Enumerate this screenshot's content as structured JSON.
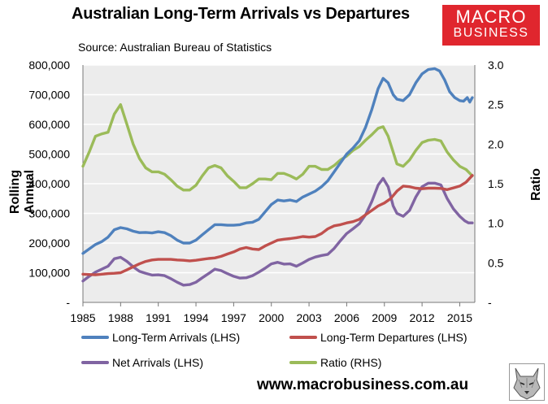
{
  "header": {
    "title": "Australian Long-Term Arrivals vs Departures",
    "subtitle": "Source: Australian Bureau of Statistics"
  },
  "logo": {
    "line1": "MACRO",
    "line2": "BUSINESS"
  },
  "footer": {
    "website": "www.macrobusiness.com.au"
  },
  "colors": {
    "arrivals": "#4f81bd",
    "departures": "#c0504d",
    "net": "#8064a2",
    "ratio": "#9bbb59",
    "logo_bg": "#e0262e"
  },
  "chart_data": {
    "type": "line",
    "ylabel_left": "Rolling Annual",
    "ylabel_right": "Ratio",
    "xlim": [
      1985,
      2016.2
    ],
    "ylim_left": [
      0,
      800000
    ],
    "ylim_right": [
      0,
      3.0
    ],
    "x_ticks": [
      "1985",
      "1988",
      "1991",
      "1994",
      "1997",
      "2000",
      "2003",
      "2006",
      "2009",
      "2012",
      "2015"
    ],
    "y_ticks_left": [
      "-",
      "100,000",
      "200,000",
      "300,000",
      "400,000",
      "500,000",
      "600,000",
      "700,000",
      "800,000"
    ],
    "y_ticks_right": [
      "-",
      "0.5",
      "1.0",
      "1.5",
      "2.0",
      "2.5",
      "3.0"
    ],
    "grid": true,
    "legend_position": "bottom",
    "series": [
      {
        "name": "Long-Term Arrivals (LHS)",
        "axis": "left",
        "points": [
          [
            1985,
            165000
          ],
          [
            1985.5,
            180000
          ],
          [
            1986,
            195000
          ],
          [
            1986.5,
            205000
          ],
          [
            1987,
            220000
          ],
          [
            1987.5,
            245000
          ],
          [
            1988,
            252000
          ],
          [
            1988.5,
            248000
          ],
          [
            1989,
            240000
          ],
          [
            1989.5,
            235000
          ],
          [
            1990,
            236000
          ],
          [
            1990.5,
            234000
          ],
          [
            1991,
            238000
          ],
          [
            1991.5,
            235000
          ],
          [
            1992,
            225000
          ],
          [
            1992.5,
            210000
          ],
          [
            1993,
            200000
          ],
          [
            1993.5,
            200000
          ],
          [
            1994,
            210000
          ],
          [
            1994.5,
            228000
          ],
          [
            1995,
            245000
          ],
          [
            1995.5,
            262000
          ],
          [
            1996,
            262000
          ],
          [
            1996.5,
            260000
          ],
          [
            1997,
            260000
          ],
          [
            1997.5,
            262000
          ],
          [
            1998,
            268000
          ],
          [
            1998.5,
            270000
          ],
          [
            1999,
            280000
          ],
          [
            1999.5,
            305000
          ],
          [
            2000,
            330000
          ],
          [
            2000.5,
            345000
          ],
          [
            2001,
            342000
          ],
          [
            2001.5,
            345000
          ],
          [
            2002,
            340000
          ],
          [
            2002.5,
            355000
          ],
          [
            2003,
            365000
          ],
          [
            2003.5,
            375000
          ],
          [
            2004,
            390000
          ],
          [
            2004.5,
            410000
          ],
          [
            2005,
            440000
          ],
          [
            2005.5,
            470000
          ],
          [
            2006,
            500000
          ],
          [
            2006.5,
            520000
          ],
          [
            2007,
            545000
          ],
          [
            2007.5,
            590000
          ],
          [
            2008,
            650000
          ],
          [
            2008.5,
            720000
          ],
          [
            2008.9,
            755000
          ],
          [
            2009.3,
            740000
          ],
          [
            2009.7,
            700000
          ],
          [
            2010,
            685000
          ],
          [
            2010.5,
            680000
          ],
          [
            2011,
            700000
          ],
          [
            2011.5,
            740000
          ],
          [
            2012,
            770000
          ],
          [
            2012.5,
            785000
          ],
          [
            2013,
            788000
          ],
          [
            2013.4,
            780000
          ],
          [
            2013.8,
            750000
          ],
          [
            2014.2,
            710000
          ],
          [
            2014.6,
            690000
          ],
          [
            2015,
            680000
          ],
          [
            2015.3,
            678000
          ],
          [
            2015.6,
            690000
          ],
          [
            2015.8,
            675000
          ],
          [
            2016,
            690000
          ]
        ]
      },
      {
        "name": "Long-Term Departures (LHS)",
        "axis": "left",
        "points": [
          [
            1985,
            95000
          ],
          [
            1985.5,
            94000
          ],
          [
            1986,
            93000
          ],
          [
            1986.5,
            95000
          ],
          [
            1987,
            97000
          ],
          [
            1987.5,
            98000
          ],
          [
            1988,
            100000
          ],
          [
            1988.5,
            110000
          ],
          [
            1989,
            120000
          ],
          [
            1989.5,
            130000
          ],
          [
            1990,
            138000
          ],
          [
            1990.5,
            143000
          ],
          [
            1991,
            145000
          ],
          [
            1991.5,
            145000
          ],
          [
            1992,
            145000
          ],
          [
            1992.5,
            143000
          ],
          [
            1993,
            142000
          ],
          [
            1993.5,
            140000
          ],
          [
            1994,
            142000
          ],
          [
            1994.5,
            145000
          ],
          [
            1995,
            148000
          ],
          [
            1995.5,
            150000
          ],
          [
            1996,
            155000
          ],
          [
            1996.5,
            163000
          ],
          [
            1997,
            170000
          ],
          [
            1997.5,
            180000
          ],
          [
            1998,
            185000
          ],
          [
            1998.5,
            180000
          ],
          [
            1999,
            178000
          ],
          [
            1999.5,
            190000
          ],
          [
            2000,
            200000
          ],
          [
            2000.5,
            210000
          ],
          [
            2001,
            213000
          ],
          [
            2001.5,
            215000
          ],
          [
            2002,
            218000
          ],
          [
            2002.5,
            222000
          ],
          [
            2003,
            220000
          ],
          [
            2003.5,
            222000
          ],
          [
            2004,
            232000
          ],
          [
            2004.5,
            248000
          ],
          [
            2005,
            258000
          ],
          [
            2005.5,
            262000
          ],
          [
            2006,
            268000
          ],
          [
            2006.5,
            272000
          ],
          [
            2007,
            280000
          ],
          [
            2007.5,
            295000
          ],
          [
            2008,
            310000
          ],
          [
            2008.5,
            325000
          ],
          [
            2009,
            335000
          ],
          [
            2009.5,
            350000
          ],
          [
            2010,
            375000
          ],
          [
            2010.5,
            392000
          ],
          [
            2011,
            390000
          ],
          [
            2011.5,
            385000
          ],
          [
            2012,
            383000
          ],
          [
            2012.5,
            385000
          ],
          [
            2013,
            385000
          ],
          [
            2013.5,
            384000
          ],
          [
            2014,
            380000
          ],
          [
            2014.5,
            386000
          ],
          [
            2015,
            392000
          ],
          [
            2015.5,
            405000
          ],
          [
            2016,
            428000
          ]
        ]
      },
      {
        "name": "Net Arrivals (LHS)",
        "axis": "left",
        "points": [
          [
            1985,
            72000
          ],
          [
            1985.5,
            88000
          ],
          [
            1986,
            102000
          ],
          [
            1986.5,
            112000
          ],
          [
            1987,
            122000
          ],
          [
            1987.5,
            147000
          ],
          [
            1988,
            152000
          ],
          [
            1988.5,
            138000
          ],
          [
            1989,
            120000
          ],
          [
            1989.5,
            105000
          ],
          [
            1990,
            98000
          ],
          [
            1990.5,
            92000
          ],
          [
            1991,
            93000
          ],
          [
            1991.5,
            90000
          ],
          [
            1992,
            80000
          ],
          [
            1992.5,
            68000
          ],
          [
            1993,
            58000
          ],
          [
            1993.5,
            60000
          ],
          [
            1994,
            68000
          ],
          [
            1994.5,
            83000
          ],
          [
            1995,
            97000
          ],
          [
            1995.5,
            112000
          ],
          [
            1996,
            107000
          ],
          [
            1996.5,
            97000
          ],
          [
            1997,
            88000
          ],
          [
            1997.5,
            82000
          ],
          [
            1998,
            83000
          ],
          [
            1998.5,
            90000
          ],
          [
            1999,
            102000
          ],
          [
            1999.5,
            115000
          ],
          [
            2000,
            130000
          ],
          [
            2000.5,
            135000
          ],
          [
            2001,
            129000
          ],
          [
            2001.5,
            130000
          ],
          [
            2002,
            122000
          ],
          [
            2002.5,
            133000
          ],
          [
            2003,
            145000
          ],
          [
            2003.5,
            153000
          ],
          [
            2004,
            158000
          ],
          [
            2004.5,
            162000
          ],
          [
            2005,
            182000
          ],
          [
            2005.5,
            208000
          ],
          [
            2006,
            232000
          ],
          [
            2006.5,
            248000
          ],
          [
            2007,
            265000
          ],
          [
            2007.5,
            295000
          ],
          [
            2008,
            340000
          ],
          [
            2008.5,
            395000
          ],
          [
            2008.9,
            418000
          ],
          [
            2009.3,
            390000
          ],
          [
            2009.7,
            325000
          ],
          [
            2010,
            300000
          ],
          [
            2010.5,
            290000
          ],
          [
            2011,
            310000
          ],
          [
            2011.5,
            355000
          ],
          [
            2012,
            390000
          ],
          [
            2012.5,
            402000
          ],
          [
            2013,
            402000
          ],
          [
            2013.5,
            396000
          ],
          [
            2014,
            350000
          ],
          [
            2014.5,
            315000
          ],
          [
            2015,
            290000
          ],
          [
            2015.4,
            275000
          ],
          [
            2015.7,
            268000
          ],
          [
            2016,
            268000
          ]
        ]
      },
      {
        "name": "Ratio (RHS)",
        "axis": "right",
        "points": [
          [
            1985,
            1.72
          ],
          [
            1985.5,
            1.9
          ],
          [
            1986,
            2.1
          ],
          [
            1986.5,
            2.13
          ],
          [
            1987,
            2.15
          ],
          [
            1987.5,
            2.38
          ],
          [
            1988,
            2.5
          ],
          [
            1988.5,
            2.25
          ],
          [
            1989,
            2.0
          ],
          [
            1989.5,
            1.82
          ],
          [
            1990,
            1.7
          ],
          [
            1990.5,
            1.65
          ],
          [
            1991,
            1.65
          ],
          [
            1991.5,
            1.62
          ],
          [
            1992,
            1.55
          ],
          [
            1992.5,
            1.47
          ],
          [
            1993,
            1.42
          ],
          [
            1993.5,
            1.42
          ],
          [
            1994,
            1.48
          ],
          [
            1994.5,
            1.6
          ],
          [
            1995,
            1.7
          ],
          [
            1995.5,
            1.73
          ],
          [
            1996,
            1.7
          ],
          [
            1996.5,
            1.6
          ],
          [
            1997,
            1.53
          ],
          [
            1997.5,
            1.45
          ],
          [
            1998,
            1.45
          ],
          [
            1998.5,
            1.5
          ],
          [
            1999,
            1.56
          ],
          [
            1999.5,
            1.56
          ],
          [
            2000,
            1.55
          ],
          [
            2000.5,
            1.63
          ],
          [
            2001,
            1.63
          ],
          [
            2001.5,
            1.6
          ],
          [
            2002,
            1.56
          ],
          [
            2002.5,
            1.62
          ],
          [
            2003,
            1.72
          ],
          [
            2003.5,
            1.72
          ],
          [
            2004,
            1.68
          ],
          [
            2004.5,
            1.68
          ],
          [
            2005,
            1.73
          ],
          [
            2005.5,
            1.8
          ],
          [
            2006,
            1.85
          ],
          [
            2006.5,
            1.92
          ],
          [
            2007,
            1.97
          ],
          [
            2007.5,
            2.05
          ],
          [
            2008,
            2.12
          ],
          [
            2008.5,
            2.2
          ],
          [
            2008.9,
            2.22
          ],
          [
            2009.3,
            2.1
          ],
          [
            2009.7,
            1.9
          ],
          [
            2010,
            1.75
          ],
          [
            2010.5,
            1.72
          ],
          [
            2011,
            1.8
          ],
          [
            2011.5,
            1.92
          ],
          [
            2012,
            2.02
          ],
          [
            2012.5,
            2.05
          ],
          [
            2013,
            2.06
          ],
          [
            2013.5,
            2.04
          ],
          [
            2014,
            1.9
          ],
          [
            2014.5,
            1.8
          ],
          [
            2015,
            1.72
          ],
          [
            2015.5,
            1.68
          ],
          [
            2016,
            1.6
          ]
        ]
      }
    ]
  }
}
